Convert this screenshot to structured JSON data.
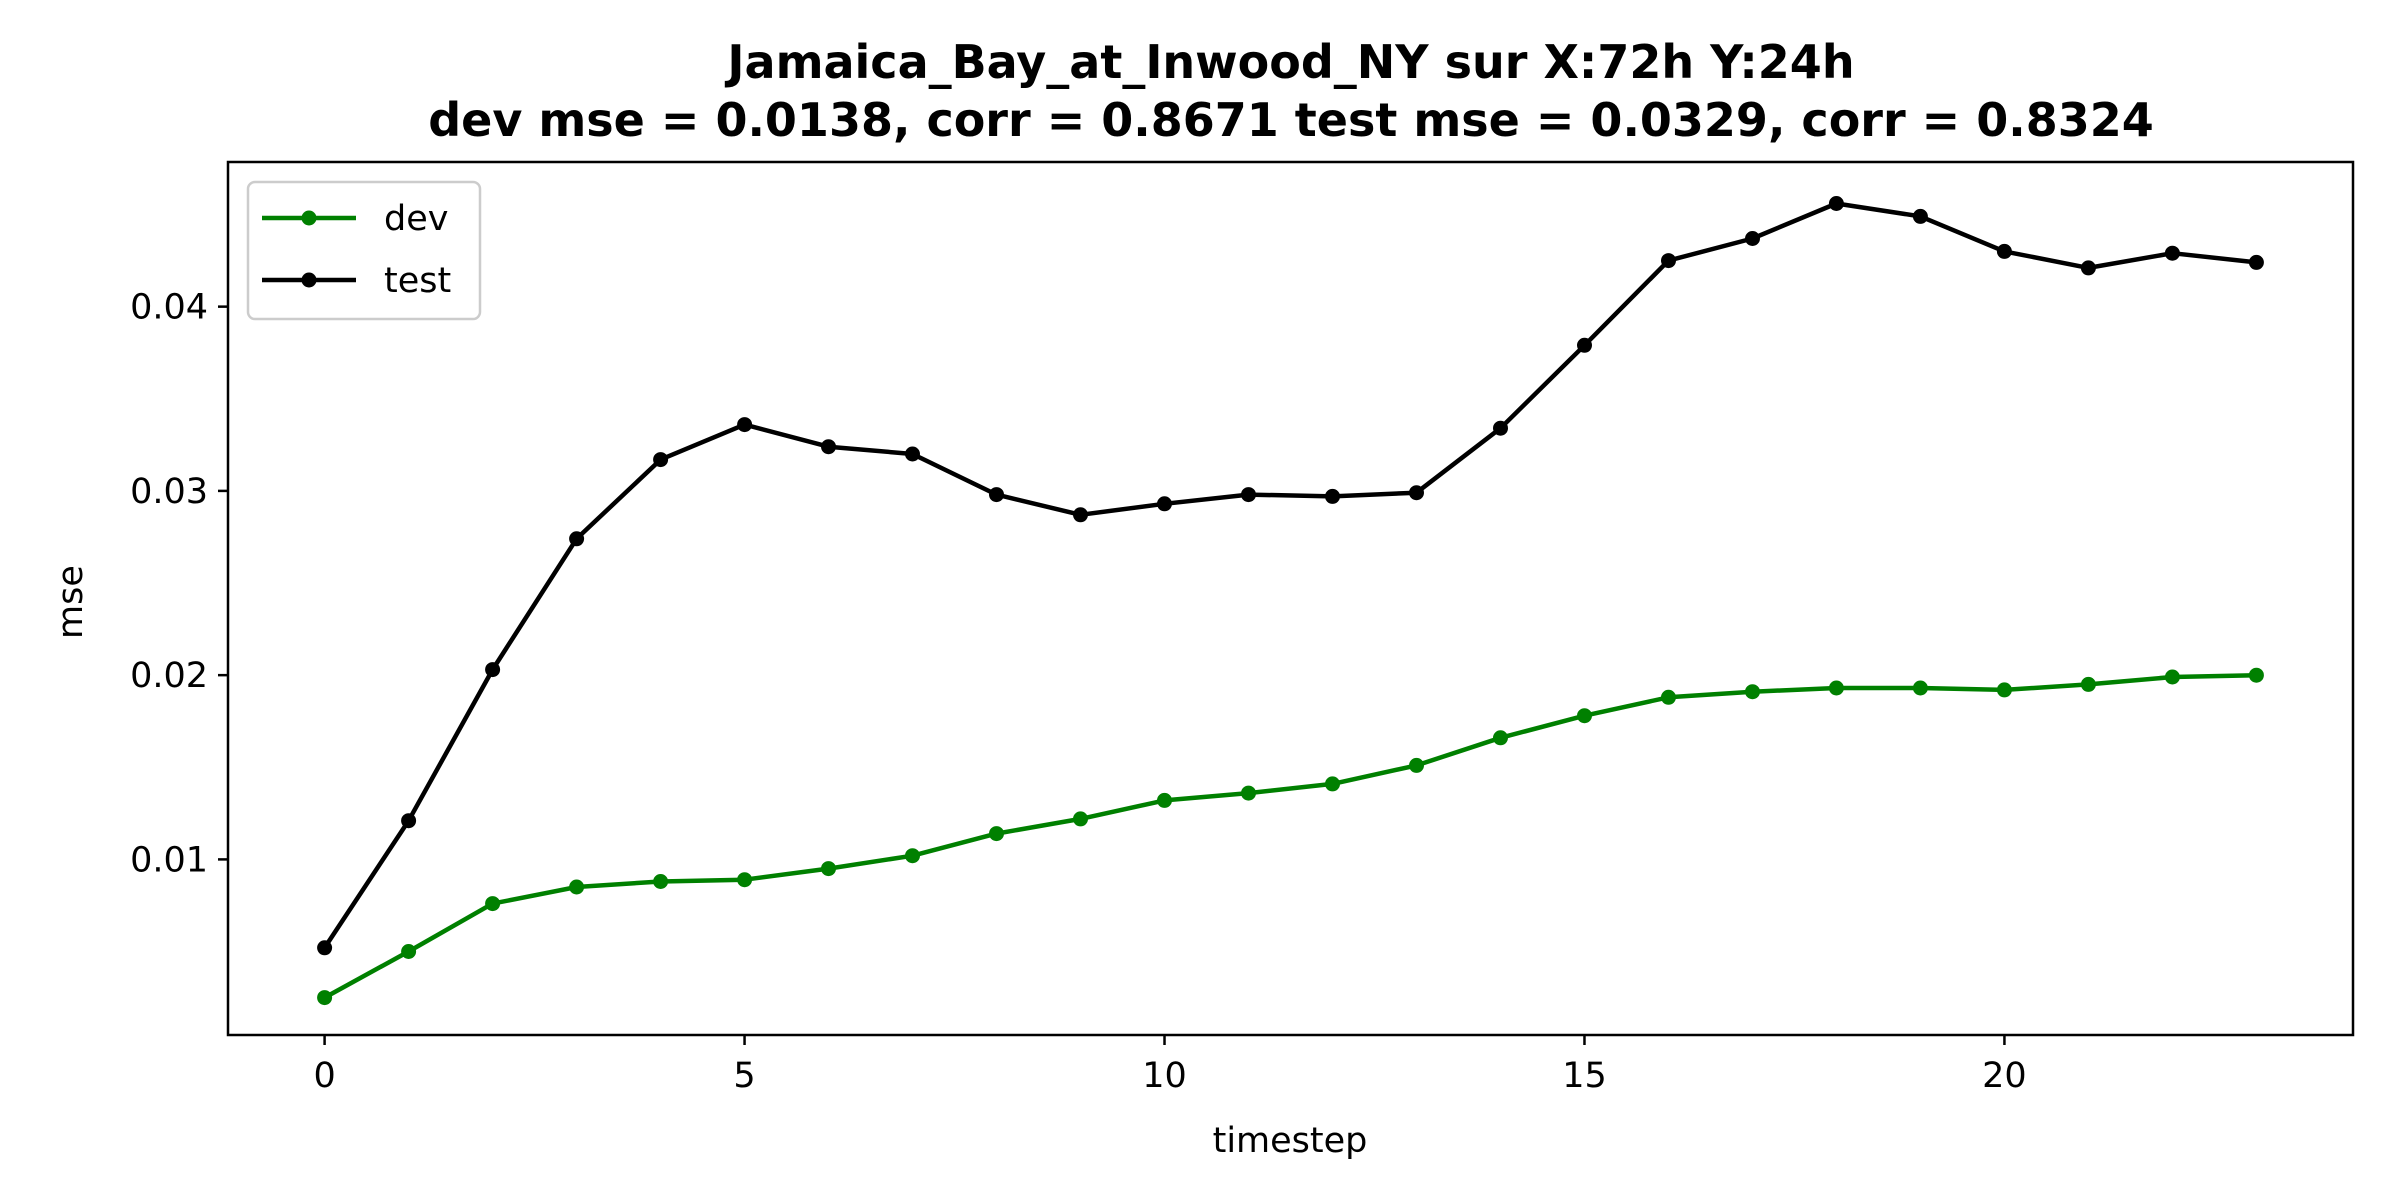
{
  "chart_data": {
    "type": "line",
    "title_line1": "Jamaica_Bay_at_Inwood_NY   sur   X:72h   Y:24h",
    "title_line2": "dev mse = 0.0138, corr = 0.8671   test mse = 0.0329, corr = 0.8324",
    "xlabel": "timestep",
    "ylabel": "mse",
    "xlim": [
      -1.15,
      24.15
    ],
    "ylim": [
      0.00047,
      0.04785
    ],
    "x_ticks": [
      0,
      5,
      10,
      15,
      20
    ],
    "x_tick_labels": [
      "0",
      "5",
      "10",
      "15",
      "20"
    ],
    "y_ticks": [
      0.01,
      0.02,
      0.03,
      0.04
    ],
    "y_tick_labels": [
      "0.01",
      "0.02",
      "0.03",
      "0.04"
    ],
    "grid": false,
    "legend_position": "top-left",
    "x": [
      0,
      1,
      2,
      3,
      4,
      5,
      6,
      7,
      8,
      9,
      10,
      11,
      12,
      13,
      14,
      15,
      16,
      17,
      18,
      19,
      20,
      21,
      22,
      23
    ],
    "series": [
      {
        "name": "dev",
        "color": "#008000",
        "marker": "circle",
        "values": [
          0.0025,
          0.005,
          0.0076,
          0.0085,
          0.0088,
          0.0089,
          0.0095,
          0.0102,
          0.0114,
          0.0122,
          0.0132,
          0.0136,
          0.0141,
          0.0151,
          0.0166,
          0.0178,
          0.0188,
          0.0191,
          0.0193,
          0.0193,
          0.0192,
          0.0195,
          0.0199,
          0.02
        ]
      },
      {
        "name": "test",
        "color": "#000000",
        "marker": "circle",
        "values": [
          0.0052,
          0.0121,
          0.0203,
          0.0274,
          0.0317,
          0.0336,
          0.0324,
          0.032,
          0.0298,
          0.0287,
          0.0293,
          0.0298,
          0.0297,
          0.0299,
          0.0334,
          0.0379,
          0.0425,
          0.0437,
          0.0456,
          0.0449,
          0.043,
          0.0421,
          0.0429,
          0.0424
        ]
      }
    ]
  }
}
